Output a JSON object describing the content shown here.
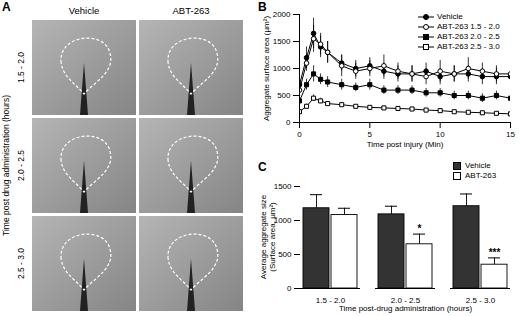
{
  "image_panel": {
    "panel_label": "A",
    "columns": [
      "Vehicle",
      "ABT-263"
    ],
    "rows": [
      "1.5 - 2.0",
      "2.0 - 2.5",
      "2.5 - 3.0"
    ],
    "row_axis_label": "Time post drug administration (hours)"
  },
  "chart_data": [
    {
      "type": "line",
      "panel_label": "B",
      "xlabel": "Time post injury (Min)",
      "ylabel": "Aggregate surface area (µm²)",
      "xlim": [
        0,
        15
      ],
      "xticks": [
        0,
        5,
        10,
        15
      ],
      "ylim": [
        0,
        2000
      ],
      "yticks": [
        0,
        500,
        1000,
        1500,
        2000
      ],
      "legend": "top-right",
      "x": [
        0,
        0.5,
        1,
        1.5,
        2,
        3,
        4,
        5,
        6,
        7,
        8,
        9,
        10,
        11,
        12,
        13,
        14,
        15
      ],
      "series": [
        {
          "name": "Vehicle",
          "color": "#000000",
          "marker": "circle",
          "values": [
            700,
            1200,
            1650,
            1400,
            1300,
            1100,
            1000,
            1050,
            950,
            900,
            900,
            950,
            850,
            900,
            900,
            850,
            850,
            850
          ],
          "errors": [
            100,
            200,
            280,
            200,
            200,
            150,
            150,
            150,
            150,
            150,
            150,
            150,
            150,
            150,
            150,
            150,
            150,
            150
          ]
        },
        {
          "name": "ABT-263 1.5 - 2.0",
          "color": "#000000",
          "marker": "open circle",
          "values": [
            600,
            1100,
            1550,
            1450,
            1300,
            1050,
            950,
            1000,
            1050,
            950,
            900,
            850,
            950,
            900,
            1000,
            950,
            900,
            900
          ],
          "errors": [
            80,
            150,
            250,
            200,
            200,
            200,
            150,
            150,
            200,
            150,
            150,
            150,
            200,
            150,
            200,
            150,
            150,
            150
          ]
        },
        {
          "name": "ABT-263 2.0 - 2.5",
          "color": "#000000",
          "marker": "square",
          "values": [
            400,
            700,
            900,
            800,
            750,
            700,
            650,
            700,
            600,
            600,
            600,
            550,
            550,
            500,
            500,
            450,
            500,
            450
          ],
          "errors": [
            50,
            100,
            150,
            100,
            100,
            100,
            80,
            100,
            80,
            80,
            80,
            80,
            80,
            80,
            80,
            80,
            80,
            80
          ]
        },
        {
          "name": "ABT-263 2.5 - 3.0",
          "color": "#000000",
          "marker": "open square",
          "values": [
            200,
            300,
            450,
            400,
            350,
            330,
            300,
            280,
            270,
            260,
            250,
            230,
            220,
            200,
            190,
            180,
            170,
            160
          ],
          "errors": [
            30,
            40,
            60,
            50,
            40,
            40,
            30,
            30,
            30,
            30,
            30,
            30,
            30,
            30,
            30,
            30,
            30,
            30
          ]
        }
      ]
    },
    {
      "type": "bar",
      "panel_label": "C",
      "xlabel": "Time post-drug administration (hours)",
      "ylabel": "Average aggregate size\n(Surface area, µm²)",
      "ylim": [
        0,
        1500
      ],
      "yticks": [
        0,
        500,
        1000,
        1500
      ],
      "legend": "top-right",
      "categories": [
        "1.5 - 2.0",
        "2.0 - 2.5",
        "2.5 - 3.0"
      ],
      "series": [
        {
          "name": "Vehicle",
          "color": "#333333",
          "values": [
            1180,
            1090,
            1210
          ],
          "errors": [
            200,
            120,
            180
          ]
        },
        {
          "name": "ABT-263",
          "color": "#ffffff",
          "values": [
            1080,
            650,
            350
          ],
          "errors": [
            100,
            150,
            100
          ]
        }
      ],
      "annotations": [
        {
          "category": "2.0 - 2.5",
          "series": "ABT-263",
          "text": "*"
        },
        {
          "category": "2.5 - 3.0",
          "series": "ABT-263",
          "text": "***"
        }
      ]
    }
  ]
}
